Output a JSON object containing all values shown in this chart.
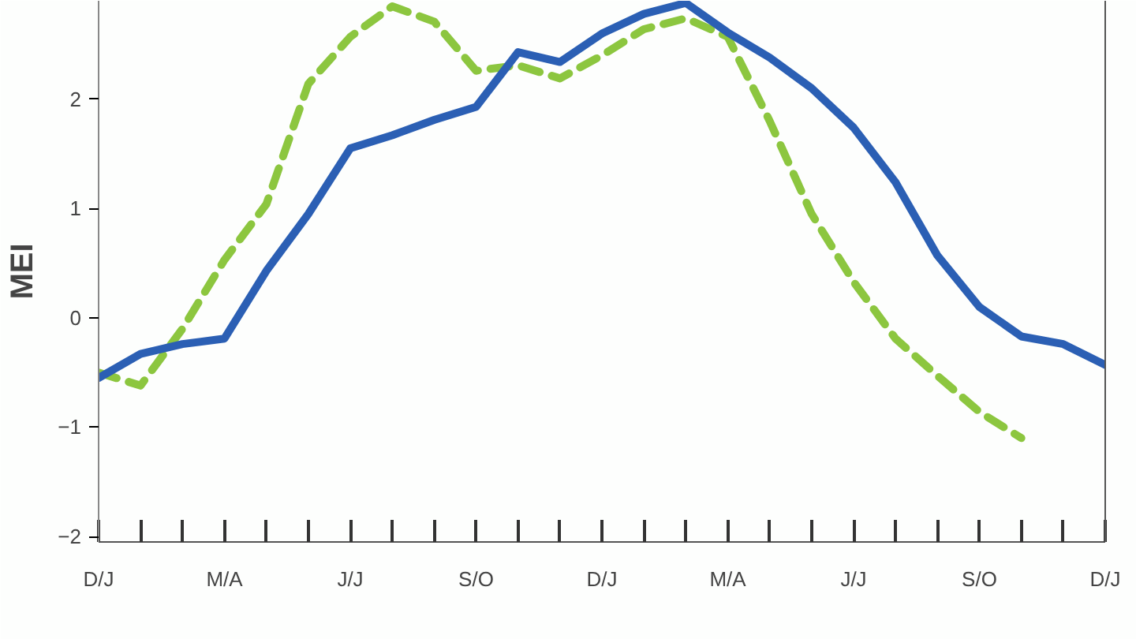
{
  "chart_data": {
    "type": "line",
    "ylabel": "MEI",
    "categories": [
      "D/J",
      null,
      null,
      "M/A",
      null,
      null,
      "J/J",
      null,
      null,
      "S/O",
      null,
      null,
      "D/J",
      null,
      null,
      "M/A",
      null,
      null,
      "J/J",
      null,
      null,
      "S/O",
      null,
      null,
      "D/J"
    ],
    "ylim": [
      -2.05,
      2.9
    ],
    "yticks": [
      -2,
      -1,
      0,
      1,
      2
    ],
    "grid": false,
    "series": [
      {
        "color": "#8cc63f",
        "line_style": "dashed",
        "values": [
          -0.5,
          -0.62,
          -0.1,
          0.53,
          1.04,
          2.14,
          2.57,
          2.85,
          2.71,
          2.26,
          2.31,
          2.19,
          2.4,
          2.64,
          2.74,
          2.57,
          1.8,
          0.95,
          0.33,
          -0.19,
          -0.53,
          -0.86,
          -1.1,
          null,
          null
        ]
      },
      {
        "color": "#2b5fb4",
        "line_style": "solid",
        "values": [
          -0.55,
          -0.33,
          -0.24,
          -0.19,
          0.43,
          0.95,
          1.55,
          1.67,
          1.81,
          1.93,
          2.43,
          2.34,
          2.6,
          2.78,
          2.88,
          2.61,
          2.38,
          2.1,
          1.74,
          1.24,
          0.57,
          0.1,
          -0.17,
          -0.24,
          -0.43
        ]
      }
    ]
  }
}
